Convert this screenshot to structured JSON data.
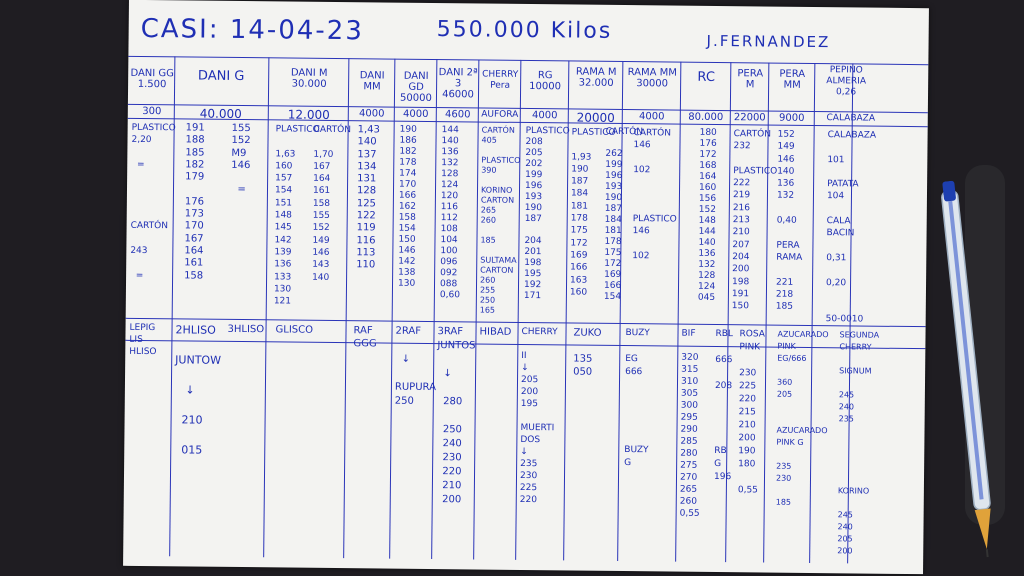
{
  "header": {
    "date": "CASI: 14-04-23",
    "total": "550.000 Kilos",
    "name": "J.FERNANDEZ"
  },
  "columns": [
    {
      "label": "DANI GG",
      "cap": "1.500"
    },
    {
      "label": "DANI G",
      "cap": ""
    },
    {
      "label": "DANI M",
      "cap": "30.000"
    },
    {
      "label": "DANI MM",
      "cap": ""
    },
    {
      "label": "DANI GD",
      "cap": "50000"
    },
    {
      "label": "DANI 2ª 3",
      "cap": "46000"
    },
    {
      "label": "CHERRY Pera",
      "cap": ""
    },
    {
      "label": "RG",
      "cap": "10000"
    },
    {
      "label": "RAMA M",
      "cap": "32.000"
    },
    {
      "label": "RAMA MM",
      "cap": "30000"
    },
    {
      "label": "RC",
      "cap": ""
    },
    {
      "label": "PERA M",
      "cap": ""
    },
    {
      "label": "PERA MM",
      "cap": ""
    },
    {
      "label": "PEPINO ALMERIA",
      "cap": "0,26"
    }
  ],
  "row2": [
    {
      "text": "300"
    },
    {
      "text": "40.000"
    },
    {
      "text": "12.000"
    },
    {
      "text": "4000"
    },
    {
      "text": "4000"
    },
    {
      "text": "4600"
    },
    {
      "text": "AUFORA"
    },
    {
      "text": "4000"
    },
    {
      "text": "20000"
    },
    {
      "text": "4000"
    },
    {
      "text": "80.000"
    },
    {
      "text": "22000"
    },
    {
      "text": "9000"
    },
    {
      "text": "CALABAZA"
    }
  ],
  "cols": [
    {
      "text": "PLASTICO\n2,20\n\n  =\n\n\n\n\nCARTÓN\n\n243\n\n  ="
    },
    {
      "text": "191\n188\n185\n182\n179\n\n176\n173\n170\n167\n164\n161\n158"
    },
    {
      "text": "155\n152\nM9\n146\n\n  ="
    },
    {
      "text": "PLASTICO\n\n1,63\n160\n157\n154\n151\n148\n145\n142\n139\n136\n133\n130\n121"
    },
    {
      "text": "CARTÓN\n\n1,70\n167\n164\n161\n158\n155\n152\n149\n146\n143\n140"
    },
    {
      "text": "1,43\n140\n137\n134\n131\n128\n125\n122\n119\n116\n113\n110"
    },
    {
      "text": "190\n186\n182\n178\n174\n170\n166\n162\n158\n154\n150\n146\n142\n138\n130"
    },
    {
      "text": "144\n140\n136\n132\n128\n124\n120\n116\n112\n108\n104\n100\n096\n092\n088\n0,60"
    },
    {
      "text": "CARTÓN\n405\n\nPLASTICO\n390\n\nKORINO\nCARTON\n265\n260\n\n185\n\nSULTAMA\nCARTON\n260\n255\n250\n165"
    },
    {
      "text": "PLASTICO\n208\n205\n202\n199\n196\n193\n190\n187\n\n204\n201\n198\n195\n192\n171"
    },
    {
      "text": "PLASTICO\n\n1,93\n190\n187\n184\n181\n178\n175\n172\n169\n166\n163\n160"
    },
    {
      "text": "CARTÓN\n\n262\n199\n196\n193\n190\n187\n184\n181\n178\n175\n172\n169\n166\n154"
    },
    {
      "text": "CARTÓN\n146\n\n102\n\n\n\nPLASTICO\n146\n\n102"
    },
    {
      "text": "180\n176\n172\n168\n164\n160\n156\n152\n148\n144\n140\n136\n132\n128\n124\n045"
    },
    {
      "text": "CARTÓN\n232\n\nPLASTICO\n222\n219\n216\n213\n210\n207\n204\n200\n198\n191\n150"
    },
    {
      "text": "152\n149\n146\n140\n136\n132\n\n0,40\n\nPERA\nRAMA\n\n221\n218\n185"
    },
    {
      "text": "CALABAZA\n\n101\n\nPATATA\n104\n\nCALA\nBACIN\n\n0,31\n\n0,20\n\n\n50-0010"
    }
  ],
  "lower": [
    {
      "text": "LEPIG\nLIS\nHLISO"
    },
    {
      "text": "2HLISO\n\nJUNTOW\n\n   ↓\n\n  210\n\n  015"
    },
    {
      "text": "3HLISO"
    },
    {
      "text": "GLISCO"
    },
    {
      "text": "RAF\nGGG"
    },
    {
      "text": "2RAF\n\n  ↓\n\nRUPURA\n250"
    },
    {
      "text": "3RAF\nJUNTOS\n\n  ↓\n\n  280\n\n  250\n  240\n  230\n  220\n  210\n  200"
    },
    {
      "text": "HIBAD"
    },
    {
      "text": "CHERRY\n\nII\n↓\n205\n200\n195\n\nMUERTI\nDOS\n↓\n235\n230\n225\n220"
    },
    {
      "text": "ZUKO\n\n135\n050"
    },
    {
      "text": "BUZY\n\nEG\n666\n\n\n\n\n\nBUZY\nG"
    },
    {
      "text": "BIF\n\n320\n315\n310\n305\n300\n295\n290\n285\n280\n275\n270\n265\n260\n0,55"
    },
    {
      "text": "RBL\n\n666\n\n208\n\n\n\n\nRB\nG\n196"
    },
    {
      "text": "ROSA\nPINK\n\n230\n225\n220\n215\n210\n200\n190\n180\n\n0,55"
    },
    {
      "text": "AZUCARADO\nPINK\nEG/666\n\n360\n205\n\n\nAZUCARADO\nPINK G\n\n235\n230\n\n185"
    },
    {
      "text": "SEGUNDA\nCHERRY\n\nSIGNUM\n\n245\n240\n235\n\n\n\n\n\nKORINO\n\n245\n240\n205\n200"
    }
  ]
}
